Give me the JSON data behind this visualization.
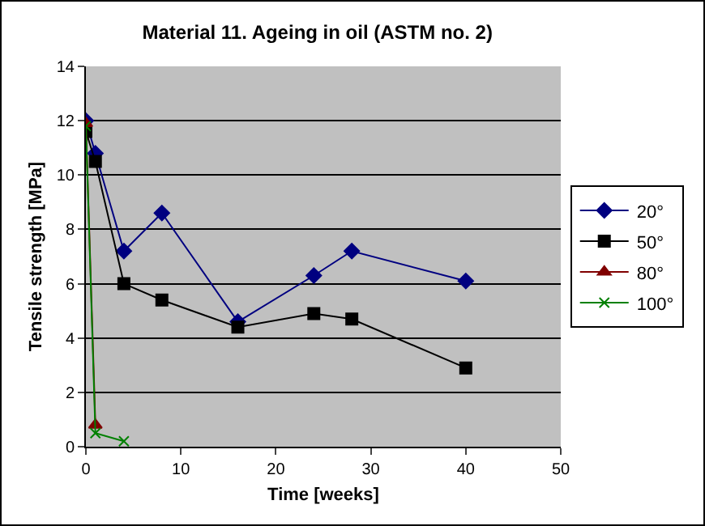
{
  "chart_data": {
    "type": "line",
    "title": "Material 11. Ageing in oil (ASTM no. 2)",
    "xlabel": "Time [weeks]",
    "ylabel": "Tensile strength [MPa]",
    "xlim": [
      0,
      50
    ],
    "xticks": [
      0,
      10,
      20,
      30,
      40,
      50
    ],
    "ylim": [
      0,
      14
    ],
    "yticks": [
      0,
      2,
      4,
      6,
      8,
      10,
      12,
      14
    ],
    "grid": "y",
    "legend": "right",
    "series": [
      {
        "name": "20°",
        "color": "#000080",
        "marker": "diamond",
        "x": [
          0,
          1,
          4,
          8,
          16,
          24,
          28,
          40
        ],
        "values": [
          12,
          10.8,
          7.2,
          8.6,
          4.6,
          6.3,
          7.2,
          6.1
        ]
      },
      {
        "name": "50°",
        "color": "#000000",
        "marker": "square",
        "x": [
          0,
          1,
          4,
          8,
          16,
          24,
          28,
          40
        ],
        "values": [
          11.6,
          10.5,
          6.0,
          5.4,
          4.4,
          4.9,
          4.7,
          2.9
        ]
      },
      {
        "name": "80°",
        "color": "#800000",
        "marker": "triangle",
        "x": [
          0,
          1
        ],
        "values": [
          11.9,
          0.8
        ]
      },
      {
        "name": "100°",
        "color": "#008000",
        "marker": "cross",
        "x": [
          0,
          1,
          4
        ],
        "values": [
          11.8,
          0.5,
          0.2
        ]
      }
    ]
  }
}
